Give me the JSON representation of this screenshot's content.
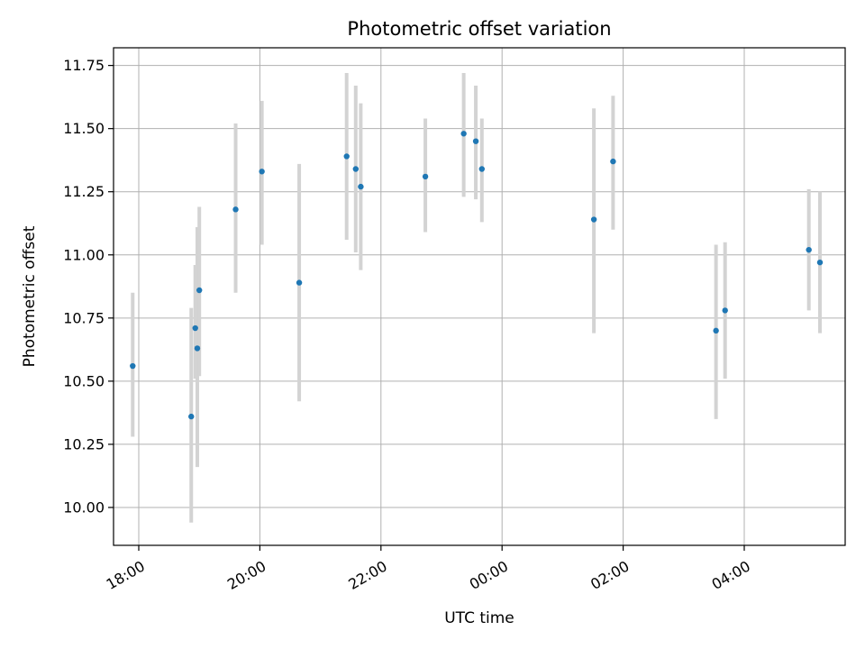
{
  "chart_data": {
    "type": "scatter",
    "title": "Photometric offset variation",
    "xlabel": "UTC time",
    "ylabel": "Photometric offset",
    "x_axis_kind": "time",
    "xlim": [
      "17:35",
      "05:40"
    ],
    "ylim": [
      9.85,
      11.82
    ],
    "xticks": [
      "18:00",
      "20:00",
      "22:00",
      "00:00",
      "02:00",
      "04:00"
    ],
    "yticks": [
      "10.00",
      "10.25",
      "10.50",
      "10.75",
      "11.00",
      "11.25",
      "11.50",
      "11.75"
    ],
    "grid": true,
    "error_bar_color": "#d3d3d3",
    "point_color": "#1f77b4",
    "points": [
      {
        "time": "17:54",
        "y": 10.56,
        "lo": 10.28,
        "hi": 10.85
      },
      {
        "time": "18:52",
        "y": 10.36,
        "lo": 9.94,
        "hi": 10.79
      },
      {
        "time": "18:56",
        "y": 10.71,
        "lo": 10.51,
        "hi": 10.96
      },
      {
        "time": "18:58",
        "y": 10.63,
        "lo": 10.16,
        "hi": 11.11
      },
      {
        "time": "19:00",
        "y": 10.86,
        "lo": 10.52,
        "hi": 11.19
      },
      {
        "time": "19:36",
        "y": 11.18,
        "lo": 10.85,
        "hi": 11.52
      },
      {
        "time": "20:02",
        "y": 11.33,
        "lo": 11.04,
        "hi": 11.61
      },
      {
        "time": "20:39",
        "y": 10.89,
        "lo": 10.42,
        "hi": 11.36
      },
      {
        "time": "21:26",
        "y": 11.39,
        "lo": 11.06,
        "hi": 11.72
      },
      {
        "time": "21:35",
        "y": 11.34,
        "lo": 11.01,
        "hi": 11.67
      },
      {
        "time": "21:40",
        "y": 11.27,
        "lo": 10.94,
        "hi": 11.6
      },
      {
        "time": "22:44",
        "y": 11.31,
        "lo": 11.09,
        "hi": 11.54
      },
      {
        "time": "23:22",
        "y": 11.48,
        "lo": 11.23,
        "hi": 11.72
      },
      {
        "time": "23:34",
        "y": 11.45,
        "lo": 11.22,
        "hi": 11.67
      },
      {
        "time": "23:40",
        "y": 11.34,
        "lo": 11.13,
        "hi": 11.54
      },
      {
        "time": "01:31",
        "y": 11.14,
        "lo": 10.69,
        "hi": 11.58
      },
      {
        "time": "01:50",
        "y": 11.37,
        "lo": 11.1,
        "hi": 11.63
      },
      {
        "time": "03:32",
        "y": 10.7,
        "lo": 10.35,
        "hi": 11.04
      },
      {
        "time": "03:41",
        "y": 10.78,
        "lo": 10.51,
        "hi": 11.05
      },
      {
        "time": "05:04",
        "y": 11.02,
        "lo": 10.78,
        "hi": 11.26
      },
      {
        "time": "05:15",
        "y": 10.97,
        "lo": 10.69,
        "hi": 11.25
      }
    ]
  }
}
